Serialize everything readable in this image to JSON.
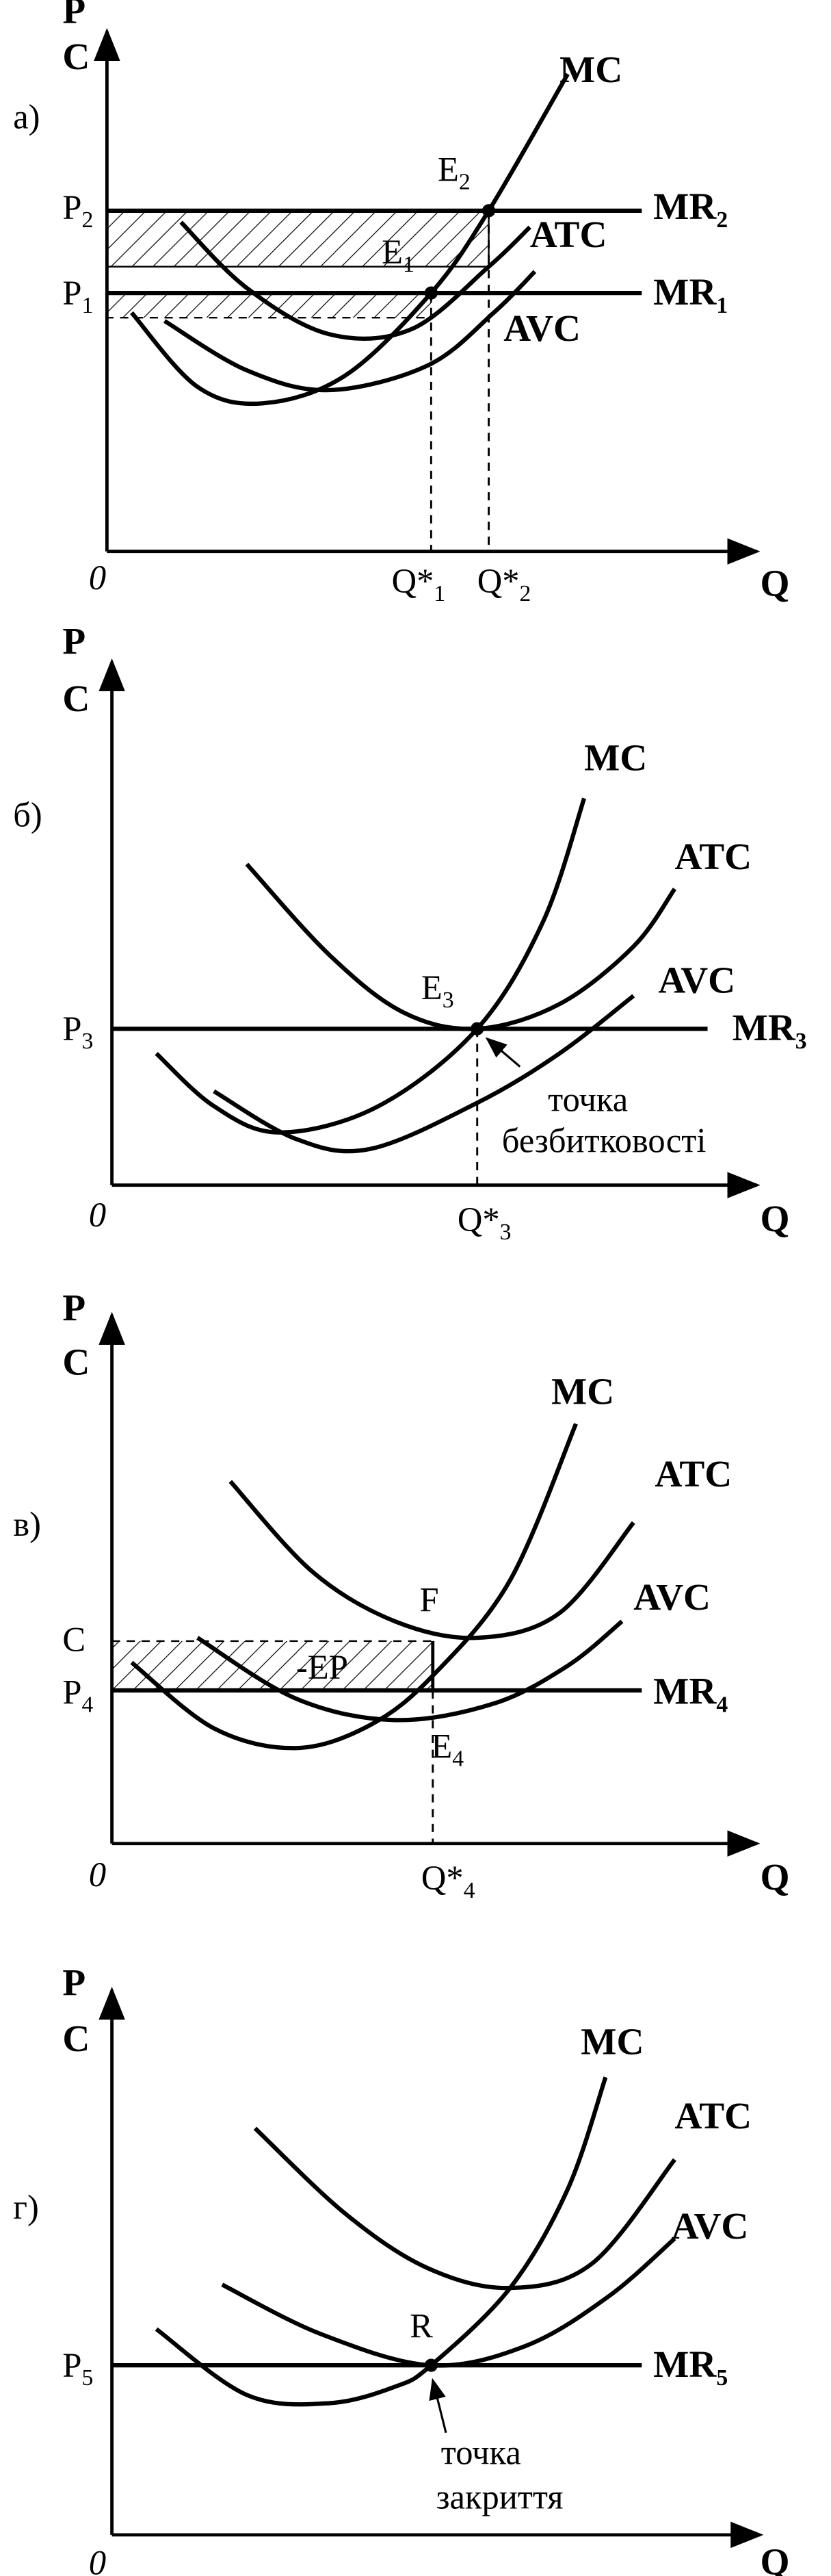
{
  "panels": [
    {
      "label": "а)",
      "p": "P",
      "c": "C",
      "origin": "0",
      "q": "Q",
      "mc": "MC",
      "atc": "ATC",
      "avc": "AVC",
      "p2": {
        "main": "P",
        "sub": "2"
      },
      "mr2": {
        "main": "MR",
        "sub": "2"
      },
      "p1": {
        "main": "P",
        "sub": "1"
      },
      "mr1": {
        "main": "MR",
        "sub": "1"
      },
      "e2": {
        "main": "E",
        "sub": "2"
      },
      "e1": {
        "main": "E",
        "sub": "1"
      },
      "q1": {
        "main": "Q*",
        "sub": "1"
      },
      "q2": {
        "main": "Q*",
        "sub": "2"
      }
    },
    {
      "label": "б)",
      "p": "P",
      "c": "C",
      "origin": "0",
      "q": "Q",
      "mc": "MC",
      "atc": "ATC",
      "avc": "AVC",
      "p3": {
        "main": "P",
        "sub": "3"
      },
      "mr3": {
        "main": "MR",
        "sub": "3"
      },
      "e3": {
        "main": "E",
        "sub": "3"
      },
      "q3": {
        "main": "Q*",
        "sub": "3"
      },
      "note1": "точка",
      "note2": "безбитковості"
    },
    {
      "label": "в)",
      "p": "P",
      "c": "C",
      "origin": "0",
      "q": "Q",
      "mc": "MC",
      "atc": "ATC",
      "avc": "AVC",
      "c_level": "C",
      "p4": {
        "main": "P",
        "sub": "4"
      },
      "mr4": {
        "main": "MR",
        "sub": "4"
      },
      "f": "F",
      "e4": {
        "main": "E",
        "sub": "4"
      },
      "ep": "-EP",
      "q4": {
        "main": "Q*",
        "sub": "4"
      }
    },
    {
      "label": "г)",
      "p": "P",
      "c": "C",
      "origin": "0",
      "q": "Q",
      "mc": "MC",
      "atc": "ATC",
      "avc": "AVC",
      "p5": {
        "main": "P",
        "sub": "5"
      },
      "mr5": {
        "main": "MR",
        "sub": "5"
      },
      "r": "R",
      "note1": "точка",
      "note2": "закриття"
    }
  ]
}
